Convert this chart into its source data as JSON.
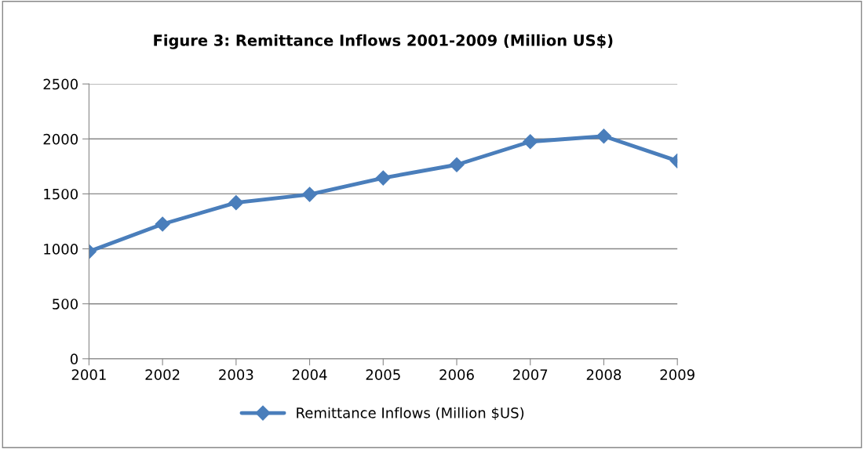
{
  "chart_data": {
    "type": "line",
    "title": "Figure 3: Remittance Inflows 2001-2009 (Million US$)",
    "categories": [
      "2001",
      "2002",
      "2003",
      "2004",
      "2005",
      "2006",
      "2007",
      "2008",
      "2009"
    ],
    "series": [
      {
        "name": "Remittance Inflows (Million $US)",
        "color": "#4a7ebb",
        "values": [
          975,
          1225,
          1420,
          1495,
          1645,
          1765,
          1975,
          2025,
          1800
        ]
      }
    ],
    "ylim": [
      0,
      2500
    ],
    "yticks": [
      0,
      500,
      1000,
      1500,
      2000,
      2500
    ],
    "grid": "y",
    "legend": "bottom",
    "marker": "diamond",
    "line_style": "solid"
  }
}
